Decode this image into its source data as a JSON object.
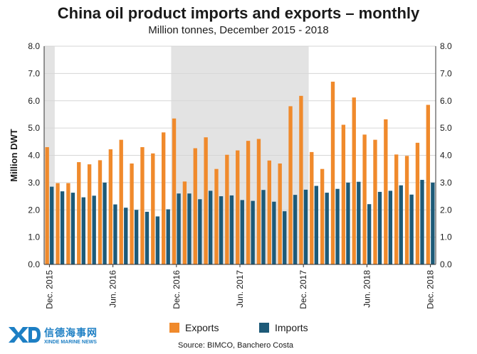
{
  "chart_data": {
    "type": "bar",
    "title": "China oil product imports and exports – monthly",
    "subtitle": "Million tonnes, December 2015 - 2018",
    "ylabel": "Million DWT",
    "ylim": [
      0,
      8
    ],
    "yticks": [
      "0.0",
      "1.0",
      "2.0",
      "3.0",
      "4.0",
      "5.0",
      "6.0",
      "7.0",
      "8.0"
    ],
    "x_tick_labels": [
      {
        "index": 0,
        "label": "Dec. 2015"
      },
      {
        "index": 6,
        "label": "Jun. 2016"
      },
      {
        "index": 12,
        "label": "Dec. 2016"
      },
      {
        "index": 18,
        "label": "Jun. 2017"
      },
      {
        "index": 24,
        "label": "Dec. 2017"
      },
      {
        "index": 30,
        "label": "Jun. 2018"
      },
      {
        "index": 36,
        "label": "Dec. 2018"
      }
    ],
    "shaded_ranges": [
      [
        0,
        0
      ],
      [
        12,
        24
      ]
    ],
    "grid": true,
    "legend_position": "bottom",
    "series": [
      {
        "name": "Exports",
        "color": "#f08a2c",
        "values": [
          4.3,
          2.98,
          2.98,
          3.75,
          3.67,
          3.82,
          4.22,
          4.57,
          3.7,
          4.3,
          4.07,
          4.84,
          5.35,
          3.04,
          4.26,
          4.66,
          3.5,
          4.02,
          4.18,
          4.53,
          4.6,
          3.81,
          3.7,
          5.8,
          6.18,
          4.12,
          3.5,
          6.7,
          5.12,
          6.12,
          4.76,
          4.57,
          5.32,
          4.03,
          3.98,
          4.46,
          5.85
        ]
      },
      {
        "name": "Imports",
        "color": "#1d5a78",
        "values": [
          2.85,
          2.68,
          2.63,
          2.46,
          2.52,
          3.0,
          2.2,
          2.08,
          2.0,
          1.93,
          1.76,
          2.02,
          2.6,
          2.6,
          2.39,
          2.7,
          2.5,
          2.53,
          2.36,
          2.33,
          2.73,
          2.3,
          1.95,
          2.55,
          2.74,
          2.88,
          2.63,
          2.77,
          3.0,
          3.03,
          2.21,
          2.66,
          2.7,
          2.9,
          2.56,
          3.1,
          3.0
        ]
      }
    ]
  },
  "source_text": "Source: BIMCO, Banchero Costa",
  "logo": {
    "chinese": "信德海事网",
    "english": "XINDE MARINE NEWS"
  }
}
